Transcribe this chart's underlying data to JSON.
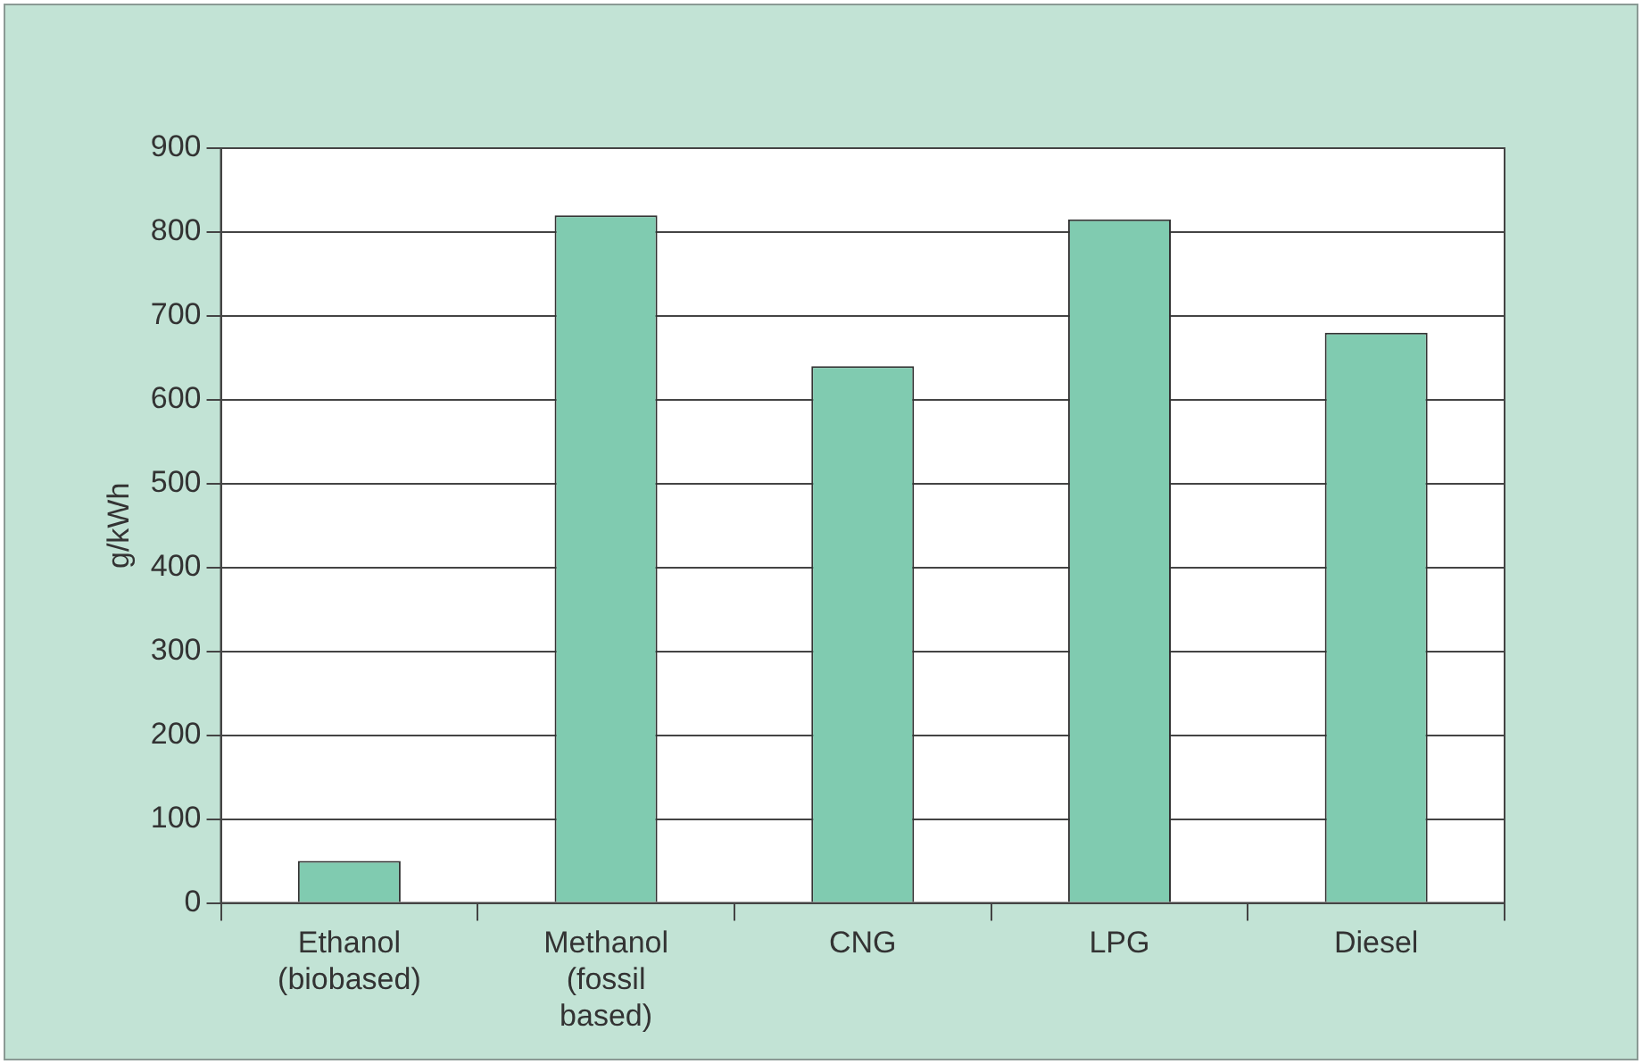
{
  "chart_data": {
    "type": "bar",
    "ylabel": "g/kWh",
    "categories": [
      "Ethanol\n(biobased)",
      "Methanol\n(fossil\nbased)",
      "CNG",
      "LPG",
      "Diesel"
    ],
    "values": [
      50,
      820,
      640,
      815,
      680
    ],
    "color": "#80cbb0",
    "ylim": [
      0,
      900
    ],
    "yticks": [
      0,
      100,
      200,
      300,
      400,
      500,
      600,
      700,
      800,
      900
    ],
    "grid": "y",
    "legend": false
  }
}
